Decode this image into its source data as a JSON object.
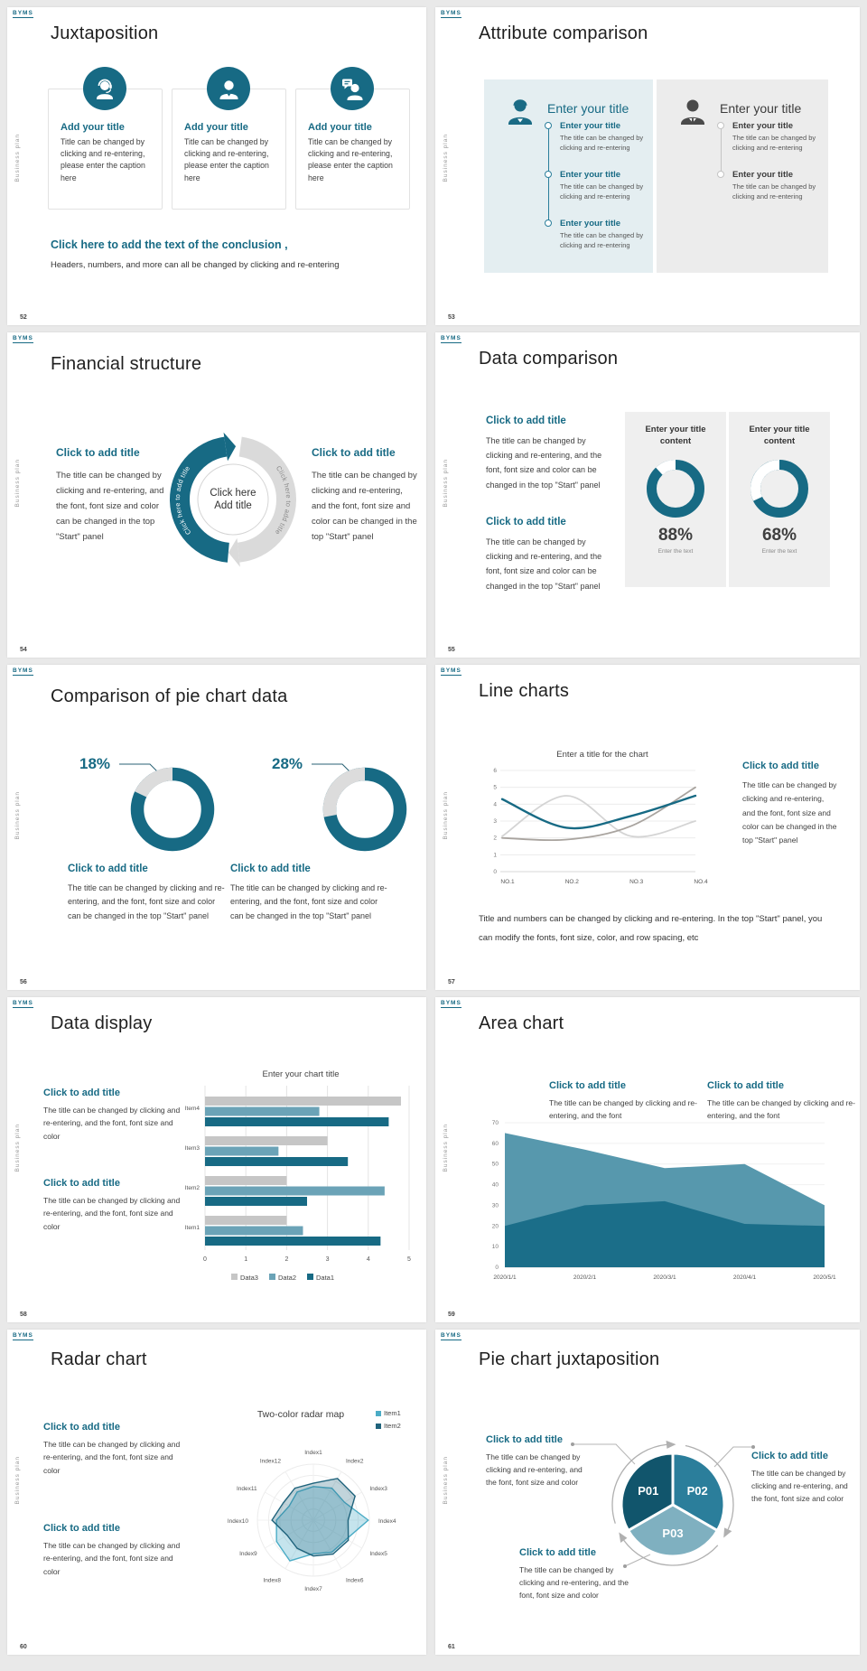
{
  "colors": {
    "accent": "#176a84",
    "teal_mid": "#2e7e9b",
    "teal_light": "#7fb0c0",
    "panel_teal": "#e4eef1",
    "panel_gray": "#ececec",
    "bar_gray": "#c6c6c6",
    "background": "#e9e9e9"
  },
  "common": {
    "logo": "BYMS",
    "sidebar_label": "Business plan"
  },
  "slides": {
    "s52": {
      "page": "52",
      "title": "Juxtaposition",
      "cards": [
        {
          "icon": "headset-person",
          "title": "Add your title",
          "body": "Title can be changed by clicking and re-entering, please enter the caption here"
        },
        {
          "icon": "person",
          "title": "Add your title",
          "body": "Title can be changed by clicking and re-entering, please enter the caption here"
        },
        {
          "icon": "chat-person",
          "title": "Add your title",
          "body": "Title can be changed by clicking and re-entering, please enter the caption here"
        }
      ],
      "conclusion_title": "Click here to add the text of the conclusion ,",
      "conclusion_body": "Headers, numbers, and more can all be changed by clicking and re-entering"
    },
    "s53": {
      "page": "53",
      "title": "Attribute comparison",
      "left_panel": {
        "heading": "Enter your title",
        "items": [
          {
            "title": "Enter your title",
            "body": "The title can be changed by clicking and re-entering"
          },
          {
            "title": "Enter your title",
            "body": "The title can be changed by clicking and re-entering"
          },
          {
            "title": "Enter your title",
            "body": "The title can be changed by clicking and re-entering"
          }
        ]
      },
      "right_panel": {
        "heading": "Enter your title",
        "items": [
          {
            "title": "Enter your title",
            "body": "The title can be changed by clicking and re-entering"
          },
          {
            "title": "Enter your title",
            "body": "The title can be changed by clicking and re-entering"
          }
        ]
      }
    },
    "s54": {
      "page": "54",
      "title": "Financial structure",
      "left": {
        "heading": "Click to add title",
        "body": "The title can be changed by clicking and re-entering, and the font, font size and color can be changed in the top \"Start\" panel"
      },
      "right": {
        "heading": "Click to add title",
        "body": "The title can be changed by clicking and re-entering, and the font, font size and color can be changed in the top \"Start\" panel"
      },
      "ring": {
        "arc_left_text": "Click here to add title",
        "arc_right_text": "Click here to add title",
        "center_line1": "Click here",
        "center_line2": "Add title"
      }
    },
    "s55": {
      "page": "55",
      "title": "Data comparison",
      "sections": [
        {
          "heading": "Click to add title",
          "body": "The title can be changed by clicking and re-entering, and the font, font size and color can be changed in the top \"Start\" panel"
        },
        {
          "heading": "Click to add title",
          "body": "The title can be changed by clicking and re-entering, and the font, font size and color can be changed in the top \"Start\" panel"
        }
      ],
      "cards": [
        {
          "heading": "Enter your title content",
          "percent": "88%",
          "caption": "Enter the text"
        },
        {
          "heading": "Enter your title content",
          "percent": "68%",
          "caption": "Enter the text"
        }
      ]
    },
    "s56": {
      "page": "56",
      "title": "Comparison of pie chart data",
      "donuts": [
        {
          "label": "18%",
          "heading": "Click to add title",
          "body": "The title can be changed by clicking and re-entering, and the font, font size and color can be changed in the top \"Start\" panel"
        },
        {
          "label": "28%",
          "heading": "Click to add title",
          "body": "The title can be changed by clicking and re-entering, and the font, font size and color can be changed in the top \"Start\" panel"
        }
      ]
    },
    "s57": {
      "page": "57",
      "title": "Line charts",
      "side": {
        "heading": "Click to add title",
        "body": "The title can be changed by clicking and re-entering, and the font, font size and color can be changed in the top \"Start\" panel"
      },
      "caption": "Title and numbers can be changed by clicking and re-entering. In the top \"Start\" panel, you can modify the fonts, font size, color, and row spacing, etc"
    },
    "s58": {
      "page": "58",
      "title": "Data display",
      "sections": [
        {
          "heading": "Click to add title",
          "body": "The title can be changed by clicking and re-entering, and the font, font size and color"
        },
        {
          "heading": "Click to add title",
          "body": "The title can be changed by clicking and re-entering, and the font, font size and color"
        }
      ]
    },
    "s59": {
      "page": "59",
      "title": "Area chart",
      "sections": [
        {
          "heading": "Click to add title",
          "body": "The title can be changed by clicking and re-entering, and the font"
        },
        {
          "heading": "Click to add title",
          "body": "The title can be changed by clicking and re-entering, and the font"
        }
      ]
    },
    "s60": {
      "page": "60",
      "title": "Radar chart",
      "sections": [
        {
          "heading": "Click to add title",
          "body": "The title can be changed by clicking and re-entering, and the font, font size and color"
        },
        {
          "heading": "Click to add title",
          "body": "The title can be changed by clicking and re-entering, and the font, font size and color"
        }
      ]
    },
    "s61": {
      "page": "61",
      "title": "Pie chart juxtaposition",
      "sections": [
        {
          "heading": "Click to add title",
          "body": "The title can be changed by clicking and re-entering, and the font, font size and color"
        },
        {
          "heading": "Click to add title",
          "body": "The title can be changed by clicking and re-entering, and the font, font size and color"
        },
        {
          "heading": "Click to add title",
          "body": "The title can be changed by clicking and re-entering, and the font, font size and color"
        }
      ]
    }
  },
  "chart_data": [
    {
      "id": "line-chart",
      "type": "line",
      "title": "Enter a title for the chart",
      "categories": [
        "NO.1",
        "NO.2",
        "NO.3",
        "NO.4"
      ],
      "ylim": [
        0,
        6
      ],
      "yticks": [
        0,
        1,
        2,
        3,
        4,
        5,
        6
      ],
      "grid": true,
      "series": [
        {
          "color": "#176a84",
          "values": [
            4.3,
            2.6,
            3.3,
            4.5
          ]
        },
        {
          "color": "#a9a49f",
          "values": [
            2.0,
            1.9,
            2.7,
            5.0
          ]
        },
        {
          "color": "#d4d4d4",
          "values": [
            2.1,
            4.5,
            2.1,
            3.0
          ]
        }
      ]
    },
    {
      "id": "bar-chart",
      "type": "bar",
      "title": "Enter your chart title",
      "orientation": "horizontal",
      "categories": [
        "Item1",
        "Item2",
        "Item3",
        "Item4"
      ],
      "xlim": [
        0,
        5
      ],
      "xticks": [
        0,
        1,
        2,
        3,
        4,
        5
      ],
      "legend": [
        "Data3",
        "Data2",
        "Data1"
      ],
      "legend_position": "bottom",
      "series": [
        {
          "name": "Data1",
          "color": "#176a84",
          "values": [
            4.3,
            2.5,
            3.5,
            4.5
          ]
        },
        {
          "name": "Data2",
          "color": "#6ba3b7",
          "values": [
            2.4,
            4.4,
            1.8,
            2.8
          ]
        },
        {
          "name": "Data3",
          "color": "#c6c6c6",
          "values": [
            2.0,
            2.0,
            3.0,
            4.8
          ]
        }
      ]
    },
    {
      "id": "area-chart",
      "type": "area",
      "categories": [
        "2020/1/1",
        "2020/2/1",
        "2020/3/1",
        "2020/4/1",
        "2020/5/1"
      ],
      "ylim": [
        0,
        70
      ],
      "yticks": [
        0,
        10,
        20,
        30,
        40,
        50,
        60,
        70
      ],
      "series": [
        {
          "color": "#5798ad",
          "values": [
            65,
            57,
            48,
            50,
            30
          ]
        },
        {
          "color": "#1b6e89",
          "values": [
            20,
            30,
            32,
            21,
            20
          ]
        }
      ]
    },
    {
      "id": "radar-chart",
      "type": "radar",
      "title": "Two-color radar map",
      "rmax": 5,
      "categories": [
        "Index1",
        "Index2",
        "Index3",
        "Index4",
        "Index5",
        "Index6",
        "Index7",
        "Index8",
        "Index9",
        "Index10",
        "Index11",
        "Index12"
      ],
      "legend_position": "top-right",
      "series": [
        {
          "name": "Item1",
          "color": "#4bacc6",
          "values": [
            3.0,
            3.3,
            3.2,
            4.9,
            3.4,
            3.3,
            3.0,
            4.2,
            3.8,
            3.3,
            2.5,
            2.9
          ]
        },
        {
          "name": "Item2",
          "color": "#1f637c",
          "values": [
            3.3,
            4.3,
            4.3,
            3.1,
            3.6,
            3.5,
            3.2,
            2.9,
            2.7,
            3.7,
            3.1,
            3.3
          ]
        }
      ]
    },
    {
      "id": "pie-chart",
      "type": "pie",
      "labels": [
        "P01",
        "P02",
        "P03"
      ],
      "values": [
        33.3,
        33.3,
        33.3
      ],
      "colors": [
        "#11556c",
        "#2b7e9b",
        "#7fb0c0"
      ]
    },
    {
      "id": "donut-88",
      "type": "donut",
      "label": "88%",
      "value": 88,
      "color": "#176a84"
    },
    {
      "id": "donut-68",
      "type": "donut",
      "label": "68%",
      "value": 68,
      "color": "#176a84"
    },
    {
      "id": "donut-18",
      "type": "donut",
      "label": "18%",
      "value": 18,
      "color": "#176a84",
      "segment_color": "#dcdcdc"
    },
    {
      "id": "donut-28",
      "type": "donut",
      "label": "28%",
      "value": 28,
      "color": "#176a84",
      "segment_color": "#dcdcdc"
    }
  ]
}
